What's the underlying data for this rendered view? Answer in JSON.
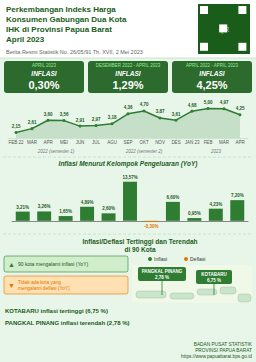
{
  "chart_data": [
    {
      "type": "line",
      "title": "Perkembangan Indeks Harga\nKonsumen Gabungan Dua Kota\nIHK di Provinsi Papua Barat\nApril 2023",
      "subtitle": "Berita Resmi Statistik No. 26/05/91 Th. XVII, 2 Mei 2023",
      "annotations": [
        "APRIL 2023",
        "INFLASI",
        "0,30%",
        "DESEMBER 2022 - APRIL 2023",
        "INFLASI",
        "1,29%",
        "APRIL 2022 - APRIL 2023",
        "INFLASI",
        "4,25%",
        "2022 (semester 1)",
        "2022 (semester 2)",
        "2023",
        "QR"
      ],
      "categories": [
        "FEB 22",
        "MAR",
        "APR",
        "MEI",
        "JUN",
        "JUL",
        "AGU",
        "SEP",
        "OKT",
        "NOV",
        "DES",
        "JAN 23",
        "FEB",
        "MAR",
        "APR"
      ],
      "values": [
        2.15,
        2.61,
        3.6,
        3.56,
        2.91,
        2.97,
        3.18,
        4.36,
        4.7,
        3.87,
        3.61,
        4.68,
        5.0,
        4.97,
        4.25
      ],
      "value_labels": [
        "2,15",
        "2,61",
        "3,60",
        "3,56",
        "2,91",
        "2,97",
        "3,18",
        "4,36",
        "4,70",
        "3,87",
        "3,61",
        "4,68",
        "5,00",
        "4,97",
        "4,25"
      ],
      "data_labels": true,
      "color": "#2e7d32",
      "marker": "circle",
      "ylim": [
        1.5,
        6.0
      ],
      "tick_labels": "x",
      "grid": false
    },
    {
      "type": "bar",
      "title": "Inflasi Menurut Kelompok Pengeluaran (YoY)",
      "annotations": [
        "Inflasi/Deflasi Tertinggi dan Terendah\ndi 90 Kota",
        "Inflasi",
        "Deflasi",
        "▲",
        "90 kota mengalami inflasi (YoY)",
        "▼",
        "Tidak ada kota yang\nmengalami deflasi (YoY)",
        "KOTABARU inflasi tertinggi (6,75 %)",
        "PANGKAL PINANG inflasi terendah (2,78 %)",
        "PANGKAL PINANG",
        "2,78 %",
        "KOTABARU",
        "6,75 %",
        "BADAN PUSAT STATISTIK\nPROVINSI PAPUA BARAT\nhttps://www.papuabarat.bps.go.id"
      ],
      "categories": [
        null,
        null,
        null,
        null,
        null,
        null,
        null,
        null,
        null,
        null,
        null
      ],
      "values": [
        3.21,
        3.26,
        1.65,
        4.89,
        2.6,
        13.57,
        -0.3,
        6.6,
        0.95,
        4.23,
        7.2
      ],
      "value_labels": [
        "3,21%",
        "3,26%",
        "1,65%",
        "4,89%",
        "2,60%",
        "13,57%",
        "-0,30%",
        "6,60%",
        "0,95%",
        "4,23%",
        "7,20%"
      ],
      "colors": [
        "#2e7d32",
        "#2e7d32",
        "#2e7d32",
        "#2e7d32",
        "#2e7d32",
        "#2e7d32",
        "#e07800",
        "#2e7d32",
        "#2e7d32",
        "#2e7d32",
        "#2e7d32"
      ],
      "data_labels": true,
      "ylim": [
        -2.5,
        17
      ],
      "tick_labels": false,
      "grid": false
    }
  ]
}
